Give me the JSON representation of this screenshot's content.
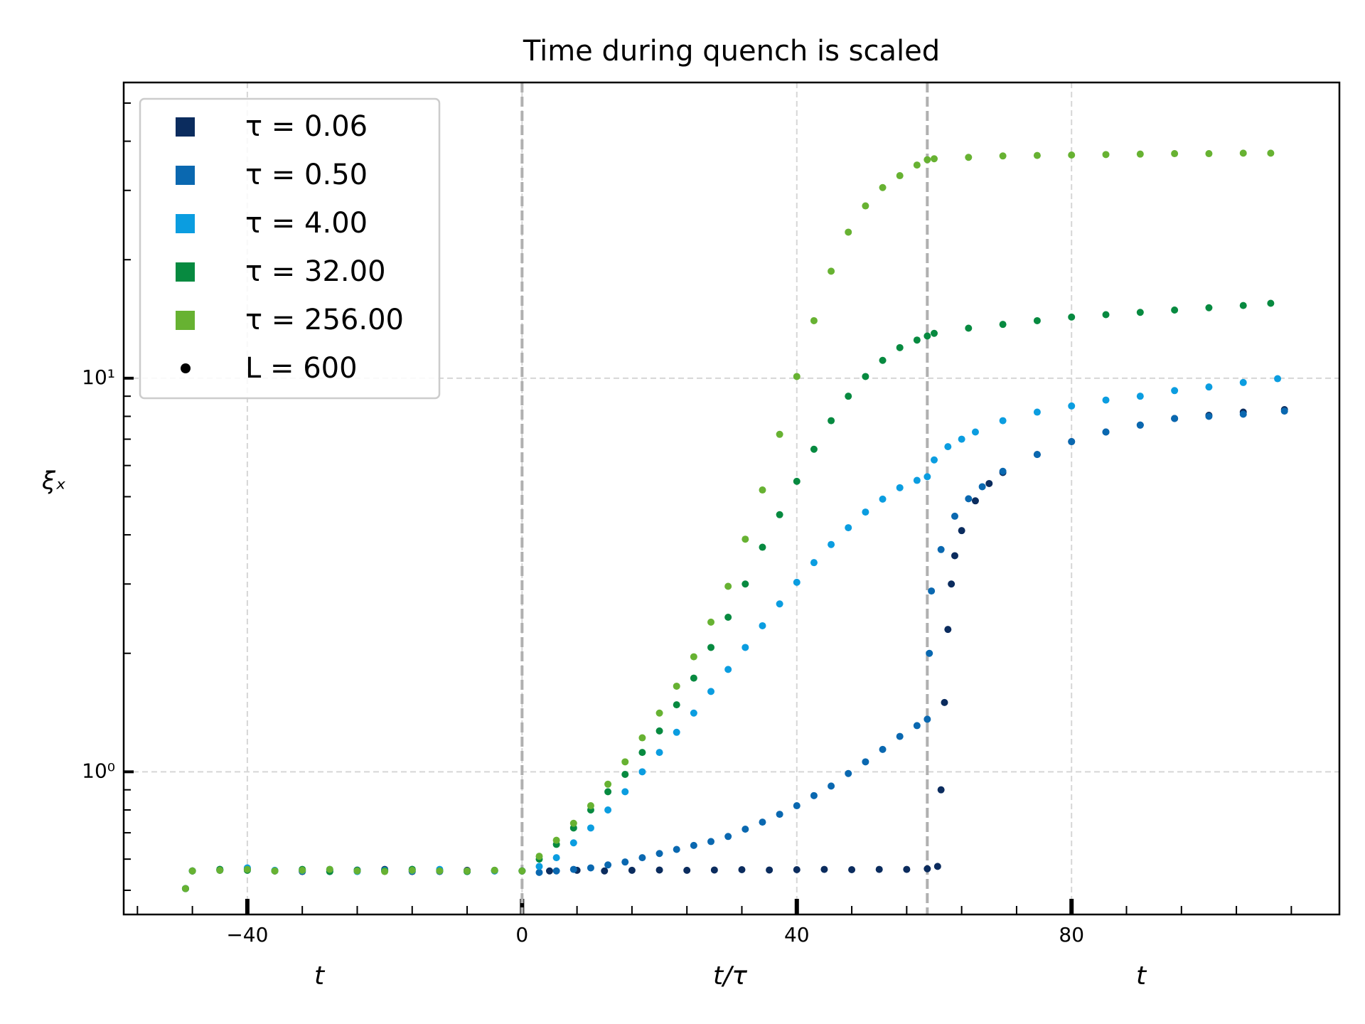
{
  "chart_data": {
    "type": "scatter",
    "title": "Time during quench is scaled",
    "y_label": "ξₓ",
    "x_labels": [
      "t",
      "t/τ",
      "t"
    ],
    "log_y": true,
    "grid": true,
    "legend_position": "upper left",
    "xlim": [
      -58,
      119
    ],
    "ylim": [
      0.434,
      56.4
    ],
    "xticks": [
      {
        "value": -40,
        "label": "−40"
      },
      0,
      40,
      80
    ],
    "yticks": [
      {
        "value": 1,
        "label": "10⁰"
      },
      {
        "value": 10,
        "label": "10¹"
      }
    ],
    "xminorticks": [
      -56,
      -48,
      -32,
      -24,
      -16,
      -8,
      8,
      16,
      24,
      32,
      48,
      56,
      64,
      72,
      88,
      96,
      104,
      112
    ],
    "yminorticks": [
      0.5,
      0.6,
      0.7,
      0.8,
      0.9,
      2,
      3,
      4,
      5,
      6,
      7,
      8,
      9,
      20,
      30,
      40,
      50
    ],
    "vlines": [
      0,
      59
    ],
    "legend_marker_entry": {
      "name": "L = 600",
      "color": "#000000"
    },
    "series": [
      {
        "name": "τ = 0.06",
        "color": "#0b2c5e",
        "x": [
          -49,
          -48,
          -44,
          -40,
          -36,
          -32,
          -28,
          -24,
          -20,
          -16,
          -12,
          -8,
          -4,
          0,
          4,
          8,
          12,
          16,
          20,
          24,
          28,
          32,
          36,
          40,
          44,
          48,
          52,
          56,
          59,
          60.5,
          61,
          61.5,
          62,
          62.5,
          63,
          64,
          66,
          68,
          70,
          75,
          80,
          85,
          90,
          95,
          100,
          105,
          111
        ],
        "values": [
          0.505,
          0.56,
          0.562,
          0.565,
          0.56,
          0.558,
          0.562,
          0.56,
          0.565,
          0.558,
          0.56,
          0.562,
          0.56,
          0.56,
          0.56,
          0.562,
          0.56,
          0.562,
          0.563,
          0.562,
          0.563,
          0.564,
          0.563,
          0.564,
          0.565,
          0.564,
          0.565,
          0.565,
          0.567,
          0.575,
          0.9,
          1.5,
          2.3,
          3.0,
          3.54,
          4.1,
          4.88,
          5.4,
          5.76,
          6.4,
          6.9,
          7.3,
          7.6,
          7.9,
          8.05,
          8.2,
          8.32
        ]
      },
      {
        "name": "τ = 0.50",
        "color": "#0a68b0",
        "x": [
          -49,
          -48,
          -44,
          -40,
          -36,
          -32,
          -28,
          -24,
          -20,
          -16,
          -12,
          -8,
          -4,
          0,
          2.5,
          5,
          7.5,
          10,
          12.5,
          15,
          17.5,
          20,
          22.5,
          25,
          27.5,
          30,
          32.5,
          35,
          37.5,
          40,
          42.5,
          45,
          47.5,
          50,
          52.5,
          55,
          57.5,
          59,
          59.3,
          59.6,
          61,
          63,
          65,
          67,
          70,
          75,
          80,
          85,
          90,
          95,
          100,
          105,
          111
        ],
        "values": [
          0.505,
          0.56,
          0.565,
          0.568,
          0.56,
          0.562,
          0.558,
          0.563,
          0.56,
          0.565,
          0.558,
          0.56,
          0.562,
          0.56,
          0.555,
          0.56,
          0.565,
          0.57,
          0.58,
          0.59,
          0.605,
          0.62,
          0.635,
          0.65,
          0.665,
          0.685,
          0.715,
          0.745,
          0.78,
          0.82,
          0.87,
          0.92,
          0.99,
          1.06,
          1.14,
          1.23,
          1.31,
          1.36,
          2.0,
          2.88,
          3.67,
          4.46,
          4.94,
          5.3,
          5.8,
          6.4,
          6.9,
          7.3,
          7.6,
          7.9,
          8.0,
          8.1,
          8.25
        ]
      },
      {
        "name": "τ = 4.00",
        "color": "#0b9de0",
        "x": [
          -49,
          -48,
          -44,
          -40,
          -36,
          -32,
          -28,
          -24,
          -20,
          -16,
          -12,
          -8,
          -4,
          0,
          2.5,
          5,
          7.5,
          10,
          12.5,
          15,
          17.5,
          20,
          22.5,
          25,
          27.5,
          30,
          32.5,
          35,
          37.5,
          40,
          42.5,
          45,
          47.5,
          50,
          52.5,
          55,
          57.5,
          59,
          60,
          62,
          64,
          66,
          70,
          75,
          80,
          85,
          90,
          95,
          100,
          105,
          110
        ],
        "values": [
          0.505,
          0.56,
          0.562,
          0.57,
          0.562,
          0.56,
          0.565,
          0.558,
          0.562,
          0.56,
          0.565,
          0.558,
          0.56,
          0.56,
          0.575,
          0.605,
          0.66,
          0.72,
          0.8,
          0.89,
          1.0,
          1.12,
          1.26,
          1.41,
          1.6,
          1.82,
          2.07,
          2.35,
          2.67,
          3.03,
          3.4,
          3.78,
          4.17,
          4.57,
          4.93,
          5.27,
          5.5,
          5.62,
          6.2,
          6.7,
          7.0,
          7.3,
          7.8,
          8.2,
          8.5,
          8.8,
          9.0,
          9.3,
          9.5,
          9.75,
          9.97
        ]
      },
      {
        "name": "τ = 32.00",
        "color": "#078a40",
        "x": [
          -49,
          -48,
          -44,
          -40,
          -36,
          -32,
          -28,
          -24,
          -20,
          -16,
          -12,
          -8,
          -4,
          0,
          2.5,
          5,
          7.5,
          10,
          12.5,
          15,
          17.5,
          20,
          22.5,
          25,
          27.5,
          30,
          32.5,
          35,
          37.5,
          40,
          42.5,
          45,
          47.5,
          50,
          52.5,
          55,
          57.5,
          59,
          60,
          65,
          70,
          75,
          80,
          85,
          90,
          95,
          100,
          105,
          109
        ],
        "values": [
          0.505,
          0.56,
          0.565,
          0.562,
          0.56,
          0.565,
          0.558,
          0.562,
          0.56,
          0.565,
          0.56,
          0.558,
          0.562,
          0.56,
          0.6,
          0.654,
          0.72,
          0.8,
          0.89,
          0.985,
          1.12,
          1.27,
          1.48,
          1.73,
          2.07,
          2.47,
          3.0,
          3.72,
          4.5,
          5.47,
          6.6,
          7.8,
          9.0,
          10.1,
          11.1,
          11.96,
          12.5,
          12.8,
          13.0,
          13.4,
          13.7,
          14.0,
          14.3,
          14.5,
          14.7,
          14.9,
          15.1,
          15.3,
          15.5
        ]
      },
      {
        "name": "τ = 256.00",
        "color": "#67b232",
        "x": [
          -49,
          -48,
          -44,
          -40,
          -36,
          -32,
          -28,
          -24,
          -20,
          -16,
          -12,
          -8,
          -4,
          0,
          2.5,
          5,
          7.5,
          10,
          12.5,
          15,
          17.5,
          20,
          22.5,
          25,
          27.5,
          30,
          32.5,
          35,
          37.5,
          40,
          42.5,
          45,
          47.5,
          50,
          52.5,
          55,
          57.5,
          59,
          60,
          65,
          70,
          75,
          80,
          85,
          90,
          95,
          100,
          105,
          109
        ],
        "values": [
          0.505,
          0.56,
          0.562,
          0.565,
          0.56,
          0.562,
          0.565,
          0.56,
          0.558,
          0.562,
          0.56,
          0.56,
          0.562,
          0.56,
          0.61,
          0.67,
          0.74,
          0.82,
          0.93,
          1.06,
          1.22,
          1.41,
          1.65,
          1.96,
          2.4,
          2.96,
          3.9,
          5.2,
          7.2,
          10.1,
          14,
          18.7,
          23.5,
          27.4,
          30.5,
          32.7,
          34.8,
          35.9,
          36.1,
          36.4,
          36.7,
          36.8,
          36.9,
          37.0,
          37.1,
          37.2,
          37.2,
          37.3,
          37.3
        ]
      }
    ]
  }
}
